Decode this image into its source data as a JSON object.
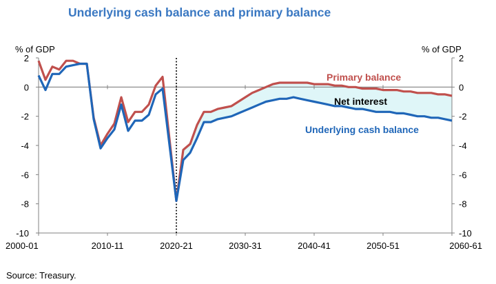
{
  "title": "Underlying cash balance and primary balance",
  "source": "Source: Treasury.",
  "chart_data": {
    "type": "line",
    "title": "Underlying cash balance and primary balance",
    "y_unit_left": "% of GDP",
    "y_unit_right": "% of GDP",
    "ylim": [
      -10,
      2
    ],
    "yticks": [
      2,
      0,
      -2,
      -4,
      -6,
      -8,
      -10
    ],
    "x_tick_labels": [
      "2000-01",
      "2010-11",
      "2020-21",
      "2030-31",
      "2040-41",
      "2050-51",
      "2060-61"
    ],
    "x_tick_index": [
      0,
      10,
      20,
      30,
      40,
      50,
      60
    ],
    "grid": false,
    "projection_start": "2020-21",
    "shaded_region": "Net interest",
    "colors": {
      "primary": "#c0504d",
      "underlying": "#1f66b8",
      "shade": "#dff6f8",
      "annotation_blue": "#1f66b8"
    },
    "annotations": {
      "primary": "Primary balance",
      "net_interest": "Net interest",
      "underlying": "Underlying cash balance"
    },
    "series": [
      {
        "name": "Primary balance",
        "values": [
          1.8,
          0.5,
          1.4,
          1.2,
          1.8,
          1.8,
          1.6,
          1.6,
          -2.1,
          -4.0,
          -3.2,
          -2.5,
          -0.7,
          -2.4,
          -1.7,
          -1.7,
          -1.2,
          0.1,
          0.7,
          null,
          null,
          -4.3,
          -3.9,
          -2.6,
          -1.7,
          -1.7,
          -1.5,
          -1.4,
          -1.3,
          -1.0,
          -0.7,
          -0.4,
          -0.2,
          0.0,
          0.2,
          0.3,
          0.3,
          0.3,
          0.3,
          0.3,
          0.2,
          0.2,
          0.2,
          0.1,
          0.1,
          0.0,
          0.0,
          -0.1,
          -0.1,
          -0.1,
          -0.2,
          -0.2,
          -0.2,
          -0.3,
          -0.3,
          -0.4,
          -0.4,
          -0.4,
          -0.5,
          -0.5,
          -0.6
        ]
      },
      {
        "name": "Underlying cash balance",
        "values": [
          0.8,
          -0.2,
          0.9,
          0.9,
          1.4,
          1.5,
          1.6,
          1.6,
          -2.2,
          -4.2,
          -3.5,
          -2.9,
          -1.2,
          -3.0,
          -2.3,
          -2.3,
          -1.9,
          -0.5,
          -0.1,
          null,
          -7.8,
          -5.0,
          -4.5,
          -3.5,
          -2.4,
          -2.4,
          -2.2,
          -2.1,
          -2.0,
          -1.8,
          -1.6,
          -1.4,
          -1.2,
          -1.0,
          -0.9,
          -0.8,
          -0.8,
          -0.7,
          -0.8,
          -0.9,
          -1.0,
          -1.1,
          -1.2,
          -1.3,
          -1.3,
          -1.4,
          -1.5,
          -1.5,
          -1.6,
          -1.7,
          -1.7,
          -1.7,
          -1.8,
          -1.8,
          -1.9,
          -2.0,
          -2.0,
          -2.1,
          -2.1,
          -2.2,
          -2.3
        ]
      }
    ]
  }
}
